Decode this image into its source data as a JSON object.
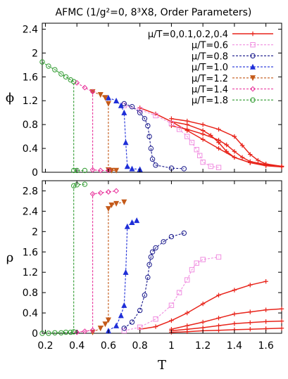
{
  "chart_data": {
    "title": "AFMC (1/g²=0, 8³X8, Order Parameters)",
    "xlabel": "T",
    "xlim": [
      0.18,
      1.7
    ],
    "xticks": [
      "0.2",
      "0.4",
      "0.6",
      "0.8",
      "1",
      "1.2",
      "1.4",
      "1.6"
    ],
    "legend_placement": "top-right",
    "legend": [
      {
        "label": "μ/T=0,0.1,0.2,0.4",
        "color": "#e8241b",
        "marker": "plus",
        "dashed": false
      },
      {
        "label": "μ/T=0.6",
        "color": "#f08ee0",
        "marker": "square",
        "dashed": true
      },
      {
        "label": "μ/T=0.8",
        "color": "#1a1a8c",
        "marker": "circle",
        "dashed": true
      },
      {
        "label": "μ/T=1.0",
        "color": "#1f2fd8",
        "marker": "triangle",
        "dashed": true
      },
      {
        "label": "μ/T=1.2",
        "color": "#c45a1a",
        "marker": "triangle-down",
        "dashed": true
      },
      {
        "label": "μ/T=1.4",
        "color": "#e8309a",
        "marker": "diamond",
        "dashed": true
      },
      {
        "label": "μ/T=1.8",
        "color": "#2e9a2e",
        "marker": "circle",
        "dashed": true
      }
    ],
    "charts": [
      {
        "type": "line",
        "ylabel": "ϕ",
        "ylim": [
          0,
          2.5
        ],
        "yticks": [
          "0",
          "0.4",
          "0.8",
          "1.2",
          "1.6",
          "2",
          "2.4"
        ],
        "series": [
          {
            "key": "red",
            "color": "#e8241b",
            "marker": "plus",
            "dashed": false,
            "points": [
              [
                0.8,
                1.08
              ],
              [
                0.9,
                0.98
              ],
              [
                1.0,
                0.85
              ],
              [
                1.1,
                0.7
              ],
              [
                1.2,
                0.55
              ],
              [
                1.3,
                0.4
              ],
              [
                1.4,
                0.25
              ],
              [
                1.5,
                0.16
              ],
              [
                1.6,
                0.11
              ],
              [
                1.7,
                0.09
              ]
            ]
          },
          {
            "key": "red",
            "color": "#e8241b",
            "marker": "plus",
            "dashed": false,
            "points": [
              [
                1.0,
                0.85
              ],
              [
                1.1,
                0.8
              ],
              [
                1.2,
                0.7
              ],
              [
                1.25,
                0.62
              ],
              [
                1.3,
                0.5
              ],
              [
                1.35,
                0.35
              ],
              [
                1.4,
                0.25
              ],
              [
                1.5,
                0.16
              ],
              [
                1.6,
                0.12
              ],
              [
                1.7,
                0.1
              ]
            ]
          },
          {
            "key": "red",
            "color": "#e8241b",
            "marker": "plus",
            "dashed": false,
            "points": [
              [
                1.0,
                0.78
              ],
              [
                1.1,
                0.72
              ],
              [
                1.2,
                0.64
              ],
              [
                1.3,
                0.54
              ],
              [
                1.35,
                0.46
              ],
              [
                1.4,
                0.35
              ],
              [
                1.45,
                0.25
              ],
              [
                1.5,
                0.18
              ],
              [
                1.6,
                0.13
              ],
              [
                1.7,
                0.1
              ]
            ]
          },
          {
            "key": "red",
            "color": "#e8241b",
            "marker": "plus",
            "dashed": false,
            "points": [
              [
                1.0,
                0.9
              ],
              [
                1.1,
                0.86
              ],
              [
                1.2,
                0.8
              ],
              [
                1.3,
                0.72
              ],
              [
                1.4,
                0.6
              ],
              [
                1.45,
                0.45
              ],
              [
                1.5,
                0.3
              ],
              [
                1.55,
                0.2
              ],
              [
                1.6,
                0.14
              ],
              [
                1.7,
                0.1
              ]
            ]
          },
          {
            "key": "pink",
            "color": "#f08ee0",
            "marker": "square",
            "dashed": true,
            "points": [
              [
                0.7,
                1.12
              ],
              [
                0.8,
                1.05
              ],
              [
                0.9,
                0.95
              ],
              [
                1.0,
                0.82
              ],
              [
                1.05,
                0.72
              ],
              [
                1.1,
                0.6
              ],
              [
                1.13,
                0.5
              ],
              [
                1.16,
                0.38
              ],
              [
                1.18,
                0.28
              ],
              [
                1.2,
                0.17
              ],
              [
                1.25,
                0.1
              ],
              [
                1.3,
                0.08
              ]
            ]
          },
          {
            "key": "navy",
            "color": "#1a1a8c",
            "marker": "circle",
            "dashed": true,
            "points": [
              [
                0.7,
                1.15
              ],
              [
                0.75,
                1.1
              ],
              [
                0.8,
                1.0
              ],
              [
                0.83,
                0.9
              ],
              [
                0.85,
                0.78
              ],
              [
                0.86,
                0.6
              ],
              [
                0.87,
                0.4
              ],
              [
                0.88,
                0.22
              ],
              [
                0.9,
                0.12
              ],
              [
                1.0,
                0.07
              ],
              [
                1.08,
                0.06
              ]
            ]
          },
          {
            "key": "blue",
            "color": "#1f2fd8",
            "marker": "triangle",
            "dashed": true,
            "points": [
              [
                0.6,
                1.25
              ],
              [
                0.65,
                1.2
              ],
              [
                0.68,
                1.12
              ],
              [
                0.7,
                1.0
              ],
              [
                0.71,
                0.5
              ],
              [
                0.72,
                0.1
              ],
              [
                0.75,
                0.06
              ],
              [
                0.8,
                0.05
              ]
            ]
          },
          {
            "key": "brown",
            "color": "#c45a1a",
            "marker": "triangle-down",
            "dashed": true,
            "points": [
              [
                0.5,
                1.35
              ],
              [
                0.55,
                1.3
              ],
              [
                0.58,
                1.25
              ],
              [
                0.6,
                1.15
              ],
              [
                0.6,
                0.04
              ],
              [
                0.62,
                0.03
              ],
              [
                0.65,
                0.03
              ]
            ]
          },
          {
            "key": "magenta",
            "color": "#e8309a",
            "marker": "diamond",
            "dashed": true,
            "points": [
              [
                0.4,
                1.5
              ],
              [
                0.45,
                1.42
              ],
              [
                0.5,
                1.35
              ],
              [
                0.5,
                0.04
              ],
              [
                0.55,
                0.03
              ],
              [
                0.6,
                0.03
              ]
            ]
          },
          {
            "key": "green",
            "color": "#2e9a2e",
            "marker": "circle",
            "dashed": true,
            "points": [
              [
                0.18,
                1.85
              ],
              [
                0.22,
                1.78
              ],
              [
                0.26,
                1.72
              ],
              [
                0.3,
                1.65
              ],
              [
                0.33,
                1.6
              ],
              [
                0.36,
                1.55
              ],
              [
                0.38,
                1.52
              ],
              [
                0.38,
                0.03
              ],
              [
                0.4,
                0.03
              ],
              [
                0.45,
                0.03
              ]
            ]
          }
        ]
      },
      {
        "type": "line",
        "ylabel": "ρ",
        "ylim": [
          0,
          3.0
        ],
        "yticks": [
          "0",
          "0.4",
          "0.8",
          "1.2",
          "1.6",
          "2",
          "2.4",
          "2.8"
        ],
        "series": [
          {
            "key": "red",
            "color": "#e8241b",
            "marker": "plus",
            "dashed": false,
            "points": [
              [
                0.8,
                0.08
              ],
              [
                0.9,
                0.13
              ],
              [
                1.0,
                0.25
              ],
              [
                1.1,
                0.4
              ],
              [
                1.2,
                0.58
              ],
              [
                1.3,
                0.75
              ],
              [
                1.4,
                0.85
              ],
              [
                1.5,
                0.95
              ],
              [
                1.6,
                1.02
              ]
            ]
          },
          {
            "key": "red",
            "color": "#e8241b",
            "marker": "plus",
            "dashed": false,
            "points": [
              [
                1.0,
                0.08
              ],
              [
                1.1,
                0.15
              ],
              [
                1.2,
                0.22
              ],
              [
                1.3,
                0.3
              ],
              [
                1.4,
                0.38
              ],
              [
                1.5,
                0.42
              ],
              [
                1.6,
                0.46
              ],
              [
                1.7,
                0.48
              ]
            ]
          },
          {
            "key": "red",
            "color": "#e8241b",
            "marker": "plus",
            "dashed": false,
            "points": [
              [
                1.0,
                0.05
              ],
              [
                1.1,
                0.08
              ],
              [
                1.2,
                0.11
              ],
              [
                1.3,
                0.15
              ],
              [
                1.4,
                0.19
              ],
              [
                1.5,
                0.21
              ],
              [
                1.6,
                0.23
              ],
              [
                1.7,
                0.24
              ]
            ]
          },
          {
            "key": "red",
            "color": "#e8241b",
            "marker": "plus",
            "dashed": false,
            "points": [
              [
                1.0,
                0.02
              ],
              [
                1.1,
                0.03
              ],
              [
                1.2,
                0.05
              ],
              [
                1.3,
                0.06
              ],
              [
                1.4,
                0.07
              ],
              [
                1.5,
                0.08
              ],
              [
                1.6,
                0.09
              ],
              [
                1.7,
                0.1
              ]
            ]
          },
          {
            "key": "pink",
            "color": "#f08ee0",
            "marker": "square",
            "dashed": true,
            "points": [
              [
                0.7,
                0.05
              ],
              [
                0.8,
                0.12
              ],
              [
                0.9,
                0.28
              ],
              [
                1.0,
                0.55
              ],
              [
                1.05,
                0.8
              ],
              [
                1.1,
                1.05
              ],
              [
                1.13,
                1.25
              ],
              [
                1.16,
                1.38
              ],
              [
                1.2,
                1.45
              ],
              [
                1.3,
                1.5
              ]
            ]
          },
          {
            "key": "navy",
            "color": "#1a1a8c",
            "marker": "circle",
            "dashed": true,
            "points": [
              [
                0.7,
                0.1
              ],
              [
                0.75,
                0.22
              ],
              [
                0.8,
                0.45
              ],
              [
                0.83,
                0.75
              ],
              [
                0.85,
                1.1
              ],
              [
                0.86,
                1.35
              ],
              [
                0.87,
                1.5
              ],
              [
                0.88,
                1.6
              ],
              [
                0.9,
                1.68
              ],
              [
                0.95,
                1.8
              ],
              [
                1.0,
                1.9
              ],
              [
                1.08,
                1.97
              ]
            ]
          },
          {
            "key": "blue",
            "color": "#1f2fd8",
            "marker": "triangle",
            "dashed": true,
            "points": [
              [
                0.6,
                0.05
              ],
              [
                0.65,
                0.15
              ],
              [
                0.68,
                0.35
              ],
              [
                0.7,
                0.55
              ],
              [
                0.71,
                1.2
              ],
              [
                0.72,
                2.1
              ],
              [
                0.75,
                2.18
              ],
              [
                0.78,
                2.22
              ]
            ]
          },
          {
            "key": "brown",
            "color": "#c45a1a",
            "marker": "triangle-down",
            "dashed": true,
            "points": [
              [
                0.5,
                0.02
              ],
              [
                0.55,
                0.1
              ],
              [
                0.58,
                0.18
              ],
              [
                0.6,
                0.26
              ],
              [
                0.6,
                2.45
              ],
              [
                0.62,
                2.52
              ],
              [
                0.65,
                2.55
              ],
              [
                0.7,
                2.58
              ]
            ]
          },
          {
            "key": "magenta",
            "color": "#e8309a",
            "marker": "diamond",
            "dashed": true,
            "points": [
              [
                0.4,
                0.02
              ],
              [
                0.45,
                0.04
              ],
              [
                0.5,
                0.06
              ],
              [
                0.5,
                2.74
              ],
              [
                0.55,
                2.76
              ],
              [
                0.6,
                2.78
              ],
              [
                0.65,
                2.8
              ]
            ]
          },
          {
            "key": "green",
            "color": "#2e9a2e",
            "marker": "circle",
            "dashed": true,
            "points": [
              [
                0.18,
                0.0
              ],
              [
                0.22,
                0.0
              ],
              [
                0.26,
                0.01
              ],
              [
                0.3,
                0.01
              ],
              [
                0.33,
                0.02
              ],
              [
                0.36,
                0.02
              ],
              [
                0.38,
                0.03
              ],
              [
                0.38,
                2.9
              ],
              [
                0.4,
                2.92
              ],
              [
                0.45,
                2.93
              ]
            ]
          }
        ]
      }
    ]
  }
}
